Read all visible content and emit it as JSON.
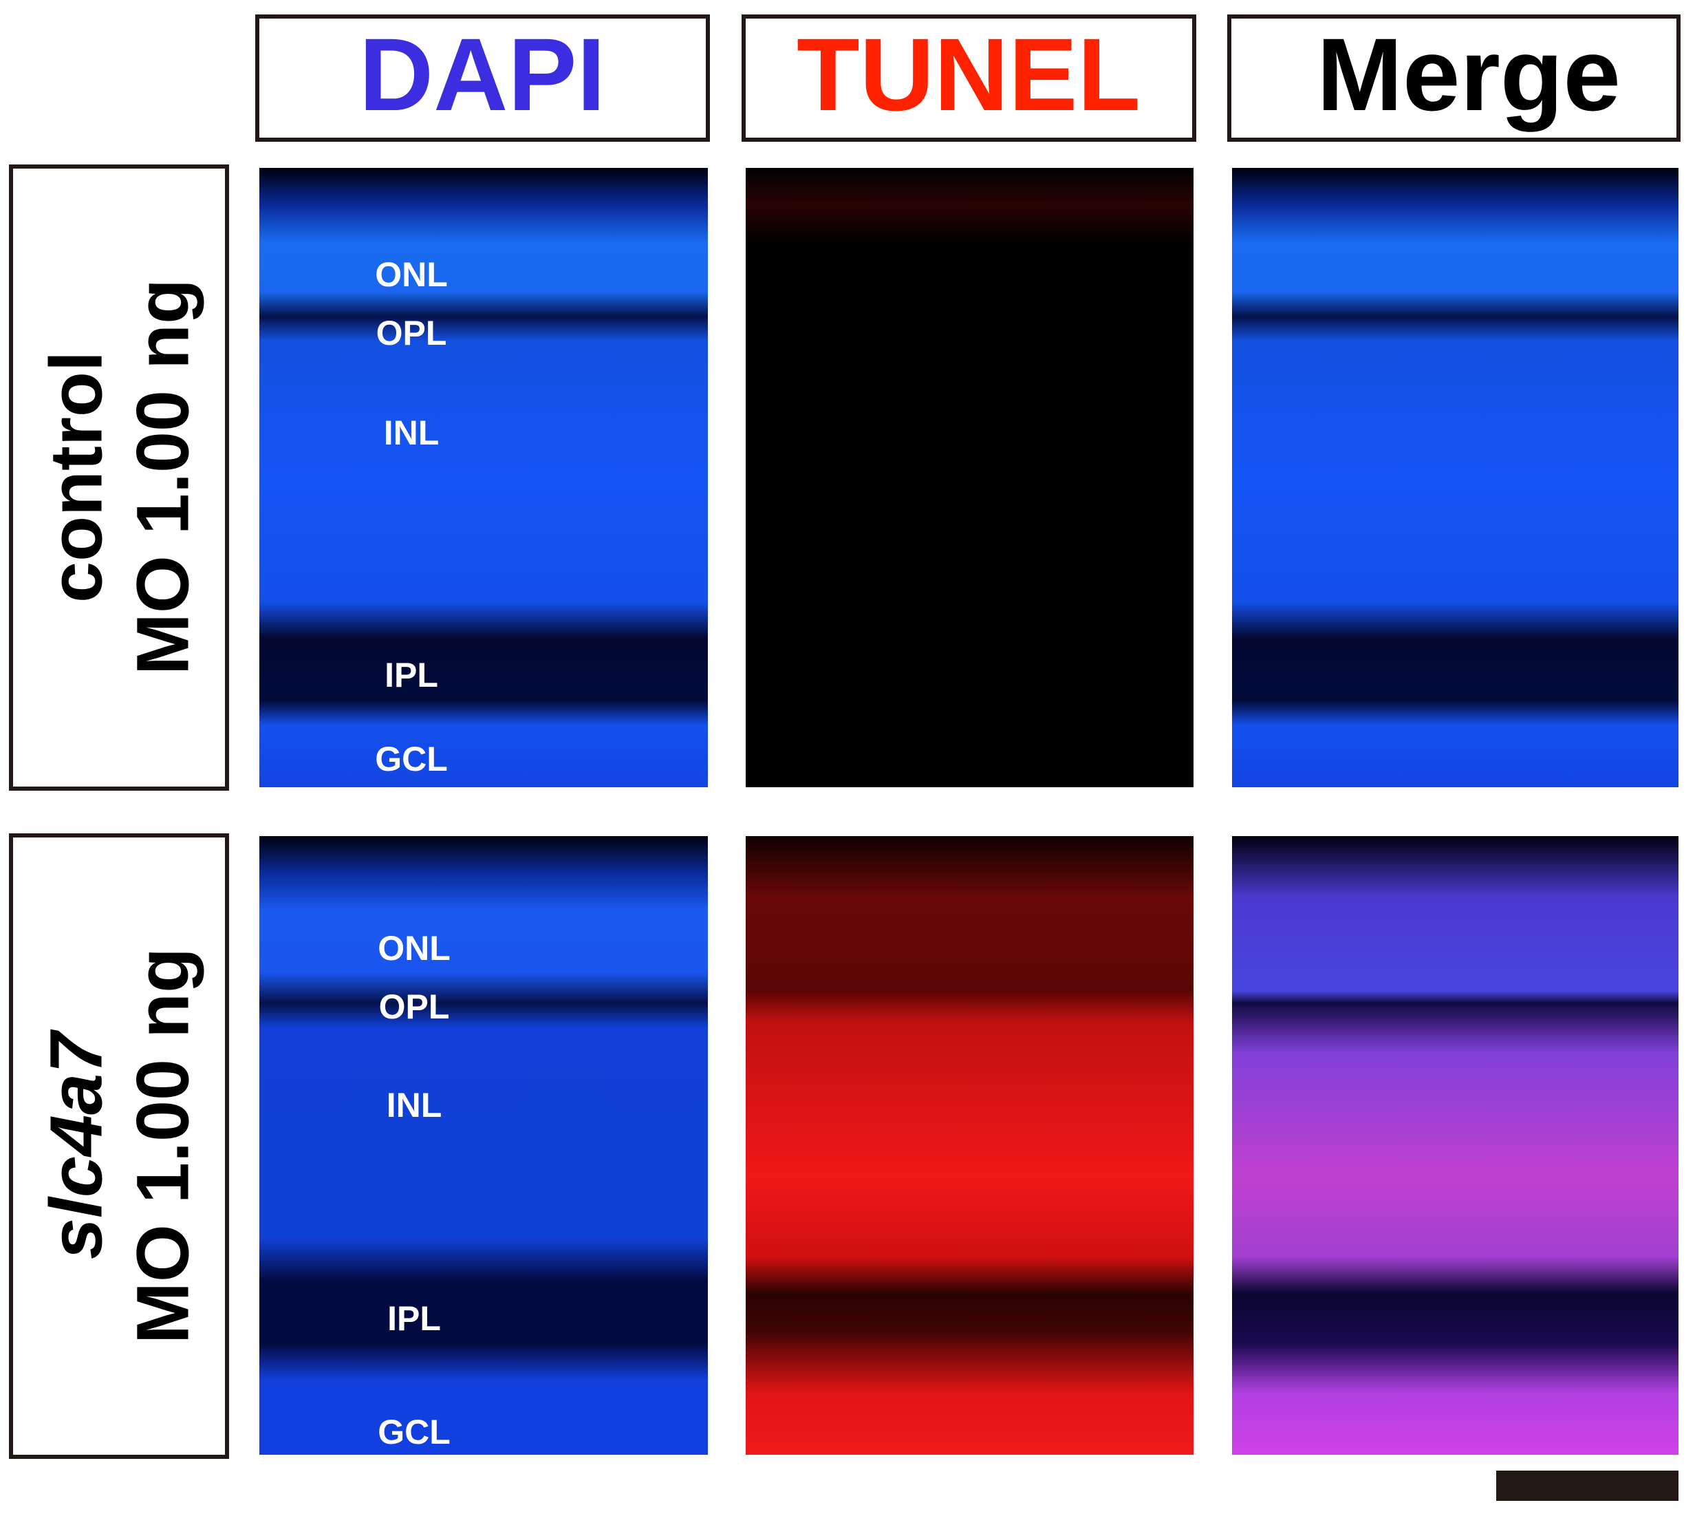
{
  "headers": [
    "DAPI",
    "TUNEL",
    "Merge"
  ],
  "rows": [
    {
      "label": "control",
      "dose": "MO 1.00 ng",
      "layers": [
        "ONL",
        "OPL",
        "INL",
        "IPL",
        "GCL"
      ]
    },
    {
      "label": "slc4a7",
      "dose": "MO 1.00 ng",
      "layers": [
        "ONL",
        "OPL",
        "INL",
        "IPL",
        "GCL"
      ]
    }
  ]
}
